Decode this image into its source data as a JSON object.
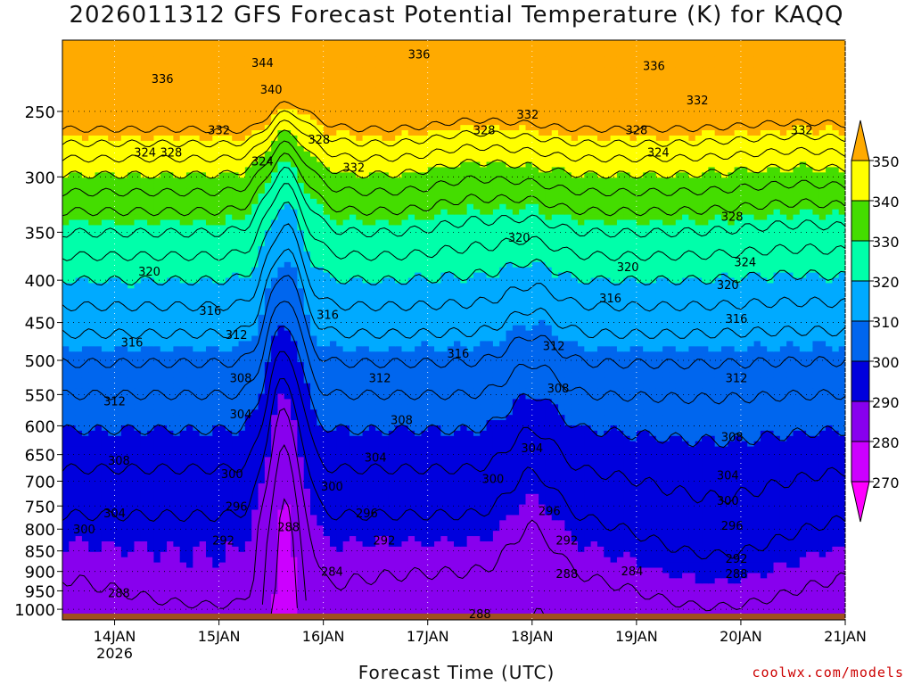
{
  "title": "2026011312 GFS Forecast Potential Temperature (K) for KAQQ",
  "credit": "coolwx.com/models",
  "chart_data": {
    "type": "heatmap",
    "title": "2026011312 GFS Forecast Potential Temperature (K) for KAQQ",
    "xlabel": "Forecast Time (UTC)",
    "ylabel": "",
    "y_axis": {
      "scale": "log",
      "inverted": true,
      "range": [
        1030,
        205
      ],
      "ticks": [
        250,
        300,
        350,
        400,
        450,
        500,
        550,
        600,
        650,
        700,
        750,
        800,
        850,
        900,
        950,
        1000
      ]
    },
    "x_axis": {
      "range_hours": [
        0,
        180
      ],
      "ticks": [
        {
          "hour": 12,
          "label": "14JAN",
          "sublabel": "2026"
        },
        {
          "hour": 36,
          "label": "15JAN",
          "sublabel": ""
        },
        {
          "hour": 60,
          "label": "16JAN",
          "sublabel": ""
        },
        {
          "hour": 84,
          "label": "17JAN",
          "sublabel": ""
        },
        {
          "hour": 108,
          "label": "18JAN",
          "sublabel": ""
        },
        {
          "hour": 132,
          "label": "19JAN",
          "sublabel": ""
        },
        {
          "hour": 156,
          "label": "20JAN",
          "sublabel": ""
        },
        {
          "hour": 180,
          "label": "21JAN",
          "sublabel": ""
        }
      ]
    },
    "grid": true,
    "colorbar": {
      "levels": [
        270,
        280,
        290,
        300,
        310,
        320,
        330,
        340,
        350
      ],
      "colors": [
        "#ff00ff",
        "#cc00ff",
        "#8800ee",
        "#0000dd",
        "#0066ee",
        "#00aaff",
        "#00ffaa",
        "#44dd00",
        "#ffff00",
        "#ffaa00"
      ]
    },
    "contour_interval": 4,
    "contour_labels": [
      {
        "value": 336,
        "hour": 23,
        "p": 228
      },
      {
        "value": 344,
        "hour": 46,
        "p": 218
      },
      {
        "value": 340,
        "hour": 48,
        "p": 235
      },
      {
        "value": 336,
        "hour": 82,
        "p": 213
      },
      {
        "value": 336,
        "hour": 136,
        "p": 220
      },
      {
        "value": 332,
        "hour": 36,
        "p": 263
      },
      {
        "value": 324,
        "hour": 19,
        "p": 280
      },
      {
        "value": 328,
        "hour": 25,
        "p": 280
      },
      {
        "value": 328,
        "hour": 59,
        "p": 270
      },
      {
        "value": 324,
        "hour": 46,
        "p": 287
      },
      {
        "value": 332,
        "hour": 67,
        "p": 292
      },
      {
        "value": 328,
        "hour": 97,
        "p": 263
      },
      {
        "value": 332,
        "hour": 107,
        "p": 252
      },
      {
        "value": 328,
        "hour": 132,
        "p": 263
      },
      {
        "value": 324,
        "hour": 137,
        "p": 280
      },
      {
        "value": 332,
        "hour": 146,
        "p": 242
      },
      {
        "value": 332,
        "hour": 170,
        "p": 263
      },
      {
        "value": 328,
        "hour": 154,
        "p": 335
      },
      {
        "value": 320,
        "hour": 105,
        "p": 355
      },
      {
        "value": 320,
        "hour": 130,
        "p": 385
      },
      {
        "value": 324,
        "hour": 157,
        "p": 380
      },
      {
        "value": 320,
        "hour": 153,
        "p": 405
      },
      {
        "value": 320,
        "hour": 20,
        "p": 390
      },
      {
        "value": 316,
        "hour": 34,
        "p": 435
      },
      {
        "value": 316,
        "hour": 16,
        "p": 475
      },
      {
        "value": 312,
        "hour": 40,
        "p": 465
      },
      {
        "value": 316,
        "hour": 61,
        "p": 440
      },
      {
        "value": 316,
        "hour": 126,
        "p": 420
      },
      {
        "value": 316,
        "hour": 155,
        "p": 445
      },
      {
        "value": 316,
        "hour": 91,
        "p": 490
      },
      {
        "value": 312,
        "hour": 113,
        "p": 480
      },
      {
        "value": 308,
        "hour": 41,
        "p": 525
      },
      {
        "value": 312,
        "hour": 73,
        "p": 525
      },
      {
        "value": 312,
        "hour": 155,
        "p": 525
      },
      {
        "value": 312,
        "hour": 12,
        "p": 560
      },
      {
        "value": 304,
        "hour": 41,
        "p": 580
      },
      {
        "value": 308,
        "hour": 78,
        "p": 590
      },
      {
        "value": 308,
        "hour": 114,
        "p": 540
      },
      {
        "value": 308,
        "hour": 154,
        "p": 618
      },
      {
        "value": 304,
        "hour": 108,
        "p": 638
      },
      {
        "value": 308,
        "hour": 13,
        "p": 660
      },
      {
        "value": 304,
        "hour": 72,
        "p": 655
      },
      {
        "value": 300,
        "hour": 39,
        "p": 685
      },
      {
        "value": 300,
        "hour": 99,
        "p": 695
      },
      {
        "value": 304,
        "hour": 153,
        "p": 688
      },
      {
        "value": 300,
        "hour": 62,
        "p": 710
      },
      {
        "value": 300,
        "hour": 153,
        "p": 738
      },
      {
        "value": 304,
        "hour": 12,
        "p": 765
      },
      {
        "value": 296,
        "hour": 40,
        "p": 750
      },
      {
        "value": 296,
        "hour": 70,
        "p": 765
      },
      {
        "value": 296,
        "hour": 112,
        "p": 760
      },
      {
        "value": 296,
        "hour": 154,
        "p": 792
      },
      {
        "value": 300,
        "hour": 5,
        "p": 800
      },
      {
        "value": 288,
        "hour": 52,
        "p": 795
      },
      {
        "value": 292,
        "hour": 37,
        "p": 825
      },
      {
        "value": 292,
        "hour": 74,
        "p": 825
      },
      {
        "value": 292,
        "hour": 116,
        "p": 825
      },
      {
        "value": 292,
        "hour": 155,
        "p": 868
      },
      {
        "value": 284,
        "hour": 62,
        "p": 900
      },
      {
        "value": 288,
        "hour": 116,
        "p": 905
      },
      {
        "value": 284,
        "hour": 131,
        "p": 898
      },
      {
        "value": 288,
        "hour": 155,
        "p": 905
      },
      {
        "value": 288,
        "hour": 13,
        "p": 955
      },
      {
        "value": 288,
        "hour": 96,
        "p": 1012
      }
    ],
    "surface_color": "#a05020"
  }
}
